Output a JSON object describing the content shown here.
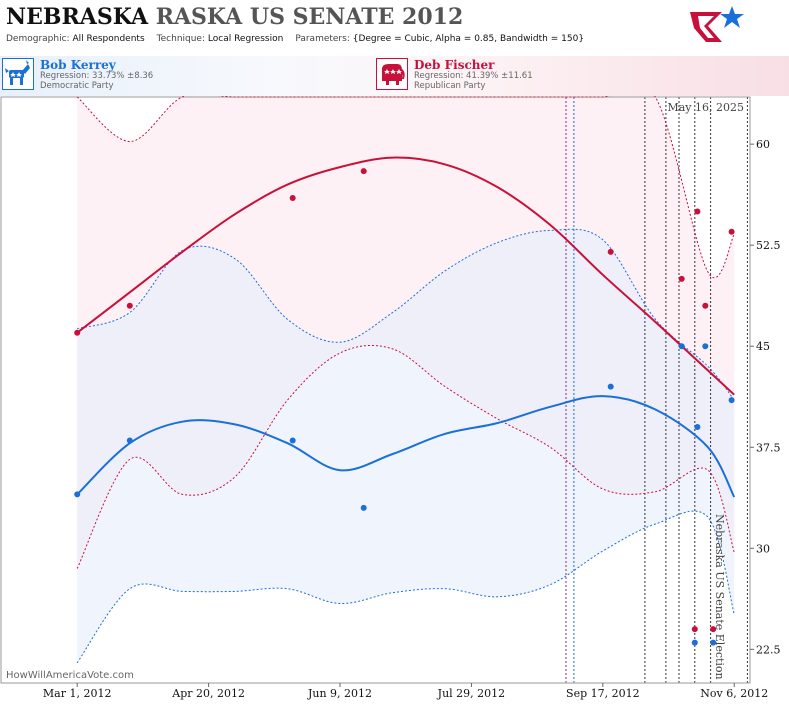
{
  "header": {
    "title_part1": "NEBRASKA",
    "title_part2": "RASKA US SENATE 2012",
    "demographic_label": "Demographic:",
    "demographic_value": "All Respondents",
    "technique_label": "Technique:",
    "technique_value": "Local Regression",
    "parameters_label": "Parameters:",
    "parameters_value": "{Degree = Cubic, Alpha = 0.85, Bandwidth = 150}"
  },
  "candidates": {
    "dem": {
      "name": "Bob Kerrey",
      "regression": "Regression: 33.73% ±8.36",
      "party": "Democratic Party",
      "icon": "donkey-icon"
    },
    "rep": {
      "name": "Deb Fischer",
      "regression": "Regression: 41.39% ±11.61",
      "party": "Republican Party",
      "icon": "elephant-icon"
    }
  },
  "colors": {
    "dem": "#1a6fd8",
    "rep": "#c8103a"
  },
  "watermark": "HowWillAmericaVote.com",
  "date_stamp": "May 16, 2025",
  "side_label": "Nebraska US Senate Election",
  "chart_data": {
    "type": "line",
    "x_start": "2012-03-01",
    "xlim": [
      "2012-02-01",
      "2012-11-12"
    ],
    "ylim": [
      20,
      63.5
    ],
    "x_ticks": [
      {
        "date": "2012-03-01",
        "label": "Mar 1, 2012"
      },
      {
        "date": "2012-04-20",
        "label": "Apr 20, 2012"
      },
      {
        "date": "2012-06-09",
        "label": "Jun 9, 2012"
      },
      {
        "date": "2012-07-29",
        "label": "Jul 29, 2012"
      },
      {
        "date": "2012-09-17",
        "label": "Sep 17, 2012"
      },
      {
        "date": "2012-11-06",
        "label": "Nov 6, 2012"
      }
    ],
    "y_ticks": [
      {
        "v": 22.5,
        "label": "22.5"
      },
      {
        "v": 30,
        "label": "30"
      },
      {
        "v": 37.5,
        "label": "37.5"
      },
      {
        "v": 45,
        "label": "45"
      },
      {
        "v": 52.5,
        "label": "52.5"
      },
      {
        "v": 60,
        "label": "60"
      }
    ],
    "event_lines": [
      {
        "date": "2012-09-03",
        "color": "#8a2a7a"
      },
      {
        "date": "2012-09-06",
        "color": "#1a6fd8"
      },
      {
        "date": "2012-10-03",
        "color": "#333333"
      },
      {
        "date": "2012-10-11",
        "color": "#333333"
      },
      {
        "date": "2012-10-16",
        "color": "#333333"
      },
      {
        "date": "2012-10-22",
        "color": "#333333"
      },
      {
        "date": "2012-10-28",
        "color": "#333333"
      },
      {
        "date": "2012-11-11",
        "color": "#333333"
      }
    ],
    "series": [
      {
        "name": "Deb Fischer",
        "color": "#c8103a",
        "x": [
          "2012-03-01",
          "2012-03-21",
          "2012-04-10",
          "2012-04-30",
          "2012-05-20",
          "2012-06-09",
          "2012-06-29",
          "2012-07-19",
          "2012-08-08",
          "2012-08-28",
          "2012-09-17",
          "2012-10-07",
          "2012-10-27",
          "2012-11-06"
        ],
        "fit": [
          46.0,
          49.0,
          52.0,
          54.8,
          57.0,
          58.3,
          59.0,
          58.5,
          56.8,
          54.0,
          50.3,
          46.8,
          43.2,
          41.4
        ],
        "upper": [
          63.5,
          60.2,
          63.5,
          63.5,
          63.5,
          63.5,
          63.5,
          63.5,
          63.5,
          63.5,
          63.5,
          63.5,
          50.5,
          53.3
        ],
        "lower": [
          28.5,
          36.6,
          34.0,
          35.3,
          41.0,
          44.5,
          44.8,
          42.0,
          39.6,
          37.5,
          34.4,
          34.2,
          35.8,
          29.7
        ],
        "points": [
          {
            "x": "2012-03-01",
            "y": 46.0
          },
          {
            "x": "2012-03-21",
            "y": 48.0
          },
          {
            "x": "2012-05-22",
            "y": 56.0
          },
          {
            "x": "2012-06-18",
            "y": 58.0
          },
          {
            "x": "2012-09-20",
            "y": 52.0
          },
          {
            "x": "2012-10-17",
            "y": 50.0
          },
          {
            "x": "2012-10-23",
            "y": 55.0
          },
          {
            "x": "2012-10-26",
            "y": 48.0
          },
          {
            "x": "2012-10-22",
            "y": 24.0
          },
          {
            "x": "2012-10-29",
            "y": 24.0
          },
          {
            "x": "2012-11-05",
            "y": 53.5
          }
        ]
      },
      {
        "name": "Bob Kerrey",
        "color": "#1a6fd8",
        "x": [
          "2012-03-01",
          "2012-03-21",
          "2012-04-10",
          "2012-04-30",
          "2012-05-20",
          "2012-06-09",
          "2012-06-29",
          "2012-07-19",
          "2012-08-08",
          "2012-08-28",
          "2012-09-17",
          "2012-10-07",
          "2012-10-27",
          "2012-11-06"
        ],
        "fit": [
          34.0,
          37.8,
          39.4,
          39.2,
          37.8,
          35.8,
          37.0,
          38.5,
          39.3,
          40.5,
          41.3,
          40.3,
          37.5,
          33.8
        ],
        "upper": [
          46.3,
          47.5,
          52.1,
          51.5,
          47.0,
          45.3,
          47.5,
          50.6,
          52.7,
          53.6,
          52.9,
          47.0,
          43.5,
          41.0
        ],
        "lower": [
          21.5,
          27.0,
          26.8,
          26.8,
          27.0,
          25.9,
          26.7,
          27.0,
          26.4,
          27.3,
          29.8,
          31.8,
          32.3,
          25.1
        ],
        "points": [
          {
            "x": "2012-03-01",
            "y": 34.0
          },
          {
            "x": "2012-03-21",
            "y": 38.0
          },
          {
            "x": "2012-05-22",
            "y": 38.0
          },
          {
            "x": "2012-06-18",
            "y": 33.0
          },
          {
            "x": "2012-09-20",
            "y": 42.0
          },
          {
            "x": "2012-10-17",
            "y": 45.0
          },
          {
            "x": "2012-10-23",
            "y": 39.0
          },
          {
            "x": "2012-10-26",
            "y": 45.0
          },
          {
            "x": "2012-10-22",
            "y": 23.0
          },
          {
            "x": "2012-10-29",
            "y": 23.0
          },
          {
            "x": "2012-11-05",
            "y": 41.0
          }
        ]
      }
    ]
  }
}
